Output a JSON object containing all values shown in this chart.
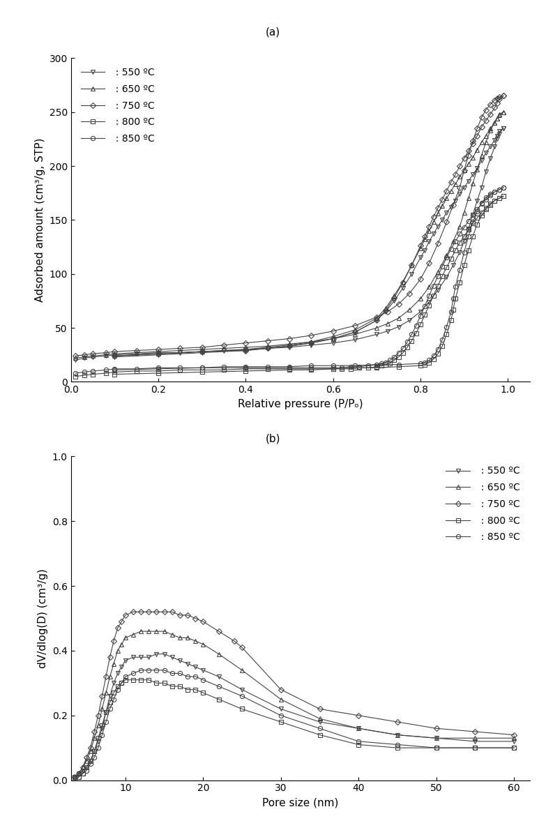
{
  "fig_width": 7.83,
  "fig_height": 11.9,
  "label_a": "(a)",
  "label_b": "(b)",
  "plot_a": {
    "xlabel": "Relative pressure (P/Pₒ)",
    "ylabel": "Adsorbed amount (cm³/g, STP)",
    "xlim": [
      0.0,
      1.05
    ],
    "ylim": [
      0,
      300
    ],
    "yticks": [
      0,
      50,
      100,
      150,
      200,
      250,
      300
    ],
    "xticks": [
      0.0,
      0.2,
      0.4,
      0.6,
      0.8,
      1.0
    ],
    "series": {
      "550": {
        "adsorption_x": [
          0.01,
          0.03,
          0.05,
          0.08,
          0.1,
          0.15,
          0.2,
          0.25,
          0.3,
          0.35,
          0.4,
          0.45,
          0.5,
          0.55,
          0.6,
          0.65,
          0.7,
          0.725,
          0.75,
          0.775,
          0.8,
          0.82,
          0.84,
          0.86,
          0.875,
          0.89,
          0.9,
          0.91,
          0.92,
          0.93,
          0.94,
          0.95,
          0.96,
          0.97,
          0.975,
          0.98,
          0.99
        ],
        "adsorption_y": [
          20,
          22,
          23,
          24,
          25,
          26,
          27,
          27,
          28,
          29,
          30,
          31,
          32,
          34,
          36,
          39,
          44,
          47,
          51,
          57,
          65,
          74,
          85,
          97,
          108,
          120,
          130,
          142,
          155,
          168,
          180,
          195,
          207,
          218,
          225,
          230,
          235
        ],
        "desorption_x": [
          0.99,
          0.98,
          0.975,
          0.97,
          0.96,
          0.95,
          0.94,
          0.93,
          0.92,
          0.91,
          0.9,
          0.89,
          0.88,
          0.87,
          0.86,
          0.85,
          0.84,
          0.83,
          0.82,
          0.81,
          0.8,
          0.78,
          0.76,
          0.74,
          0.72,
          0.7,
          0.65,
          0.6,
          0.55,
          0.5,
          0.45,
          0.4,
          0.3,
          0.2,
          0.1
        ],
        "desorption_y": [
          235,
          232,
          228,
          224,
          218,
          212,
          205,
          198,
          192,
          186,
          180,
          174,
          168,
          162,
          157,
          150,
          144,
          137,
          130,
          122,
          115,
          100,
          87,
          75,
          65,
          57,
          46,
          40,
          36,
          33,
          31,
          29,
          27,
          25,
          23
        ],
        "marker": "v",
        "color": "#444444"
      },
      "650": {
        "adsorption_x": [
          0.01,
          0.03,
          0.05,
          0.08,
          0.1,
          0.15,
          0.2,
          0.25,
          0.3,
          0.35,
          0.4,
          0.45,
          0.5,
          0.55,
          0.6,
          0.65,
          0.7,
          0.725,
          0.75,
          0.775,
          0.8,
          0.82,
          0.84,
          0.86,
          0.875,
          0.89,
          0.9,
          0.91,
          0.92,
          0.93,
          0.94,
          0.95,
          0.96,
          0.97,
          0.975,
          0.98,
          0.99
        ],
        "adsorption_y": [
          22,
          23,
          24,
          25,
          26,
          27,
          28,
          29,
          30,
          31,
          32,
          33,
          35,
          37,
          40,
          44,
          50,
          54,
          59,
          67,
          77,
          88,
          102,
          117,
          130,
          144,
          157,
          170,
          184,
          197,
          210,
          222,
          233,
          240,
          244,
          248,
          250
        ],
        "desorption_x": [
          0.99,
          0.98,
          0.975,
          0.97,
          0.96,
          0.95,
          0.94,
          0.93,
          0.92,
          0.91,
          0.9,
          0.89,
          0.88,
          0.87,
          0.86,
          0.85,
          0.84,
          0.83,
          0.82,
          0.81,
          0.8,
          0.78,
          0.76,
          0.74,
          0.72,
          0.7,
          0.65,
          0.6,
          0.55,
          0.5,
          0.45,
          0.4,
          0.3,
          0.2,
          0.1
        ],
        "desorption_y": [
          250,
          247,
          244,
          240,
          235,
          228,
          222,
          215,
          208,
          202,
          196,
          190,
          183,
          177,
          170,
          163,
          156,
          148,
          140,
          132,
          124,
          108,
          93,
          80,
          68,
          59,
          48,
          42,
          37,
          34,
          32,
          30,
          28,
          26,
          24
        ],
        "marker": "^",
        "color": "#444444"
      },
      "750": {
        "adsorption_x": [
          0.01,
          0.03,
          0.05,
          0.08,
          0.1,
          0.15,
          0.2,
          0.25,
          0.3,
          0.35,
          0.4,
          0.45,
          0.5,
          0.55,
          0.6,
          0.65,
          0.7,
          0.725,
          0.75,
          0.775,
          0.8,
          0.82,
          0.84,
          0.86,
          0.875,
          0.89,
          0.9,
          0.91,
          0.92,
          0.93,
          0.94,
          0.95,
          0.96,
          0.97,
          0.975,
          0.98,
          0.99
        ],
        "adsorption_y": [
          24,
          25,
          26,
          27,
          28,
          29,
          30,
          31,
          32,
          34,
          36,
          38,
          40,
          43,
          47,
          52,
          60,
          65,
          72,
          82,
          95,
          110,
          128,
          148,
          164,
          180,
          196,
          210,
          223,
          235,
          245,
          252,
          257,
          261,
          263,
          264,
          265
        ],
        "desorption_x": [
          0.99,
          0.98,
          0.975,
          0.97,
          0.96,
          0.95,
          0.94,
          0.93,
          0.92,
          0.91,
          0.9,
          0.89,
          0.88,
          0.87,
          0.86,
          0.85,
          0.84,
          0.83,
          0.82,
          0.81,
          0.8,
          0.78,
          0.76,
          0.74,
          0.72,
          0.7,
          0.65,
          0.6,
          0.55,
          0.5,
          0.45,
          0.4,
          0.3,
          0.2,
          0.1
        ],
        "desorption_y": [
          265,
          262,
          258,
          254,
          248,
          242,
          236,
          228,
          221,
          214,
          207,
          200,
          192,
          185,
          177,
          169,
          161,
          153,
          144,
          135,
          126,
          108,
          92,
          78,
          66,
          57,
          46,
          40,
          36,
          33,
          31,
          29,
          28,
          26,
          24
        ],
        "marker": "D",
        "color": "#444444"
      },
      "800": {
        "adsorption_x": [
          0.01,
          0.03,
          0.05,
          0.08,
          0.1,
          0.15,
          0.2,
          0.25,
          0.3,
          0.35,
          0.4,
          0.45,
          0.5,
          0.55,
          0.6,
          0.65,
          0.7,
          0.75,
          0.8,
          0.81,
          0.82,
          0.83,
          0.84,
          0.85,
          0.86,
          0.87,
          0.875,
          0.88,
          0.89,
          0.9,
          0.91,
          0.92,
          0.93,
          0.94,
          0.95,
          0.96,
          0.97,
          0.98,
          0.99
        ],
        "adsorption_y": [
          5,
          6,
          7,
          8,
          9,
          10,
          10,
          11,
          11,
          11,
          12,
          12,
          12,
          12,
          12,
          13,
          13,
          14,
          15,
          16,
          18,
          21,
          26,
          33,
          44,
          57,
          67,
          77,
          92,
          108,
          122,
          135,
          146,
          154,
          160,
          164,
          168,
          170,
          172
        ],
        "desorption_x": [
          0.99,
          0.98,
          0.97,
          0.96,
          0.95,
          0.94,
          0.93,
          0.92,
          0.91,
          0.9,
          0.89,
          0.88,
          0.87,
          0.86,
          0.85,
          0.84,
          0.83,
          0.82,
          0.81,
          0.8,
          0.79,
          0.78,
          0.77,
          0.76,
          0.75,
          0.74,
          0.73,
          0.72,
          0.71,
          0.7,
          0.68,
          0.66,
          0.64,
          0.62,
          0.6,
          0.55,
          0.5,
          0.4,
          0.3,
          0.2,
          0.1
        ],
        "desorption_y": [
          172,
          170,
          168,
          165,
          161,
          157,
          152,
          147,
          141,
          135,
          129,
          122,
          114,
          106,
          98,
          89,
          80,
          71,
          62,
          53,
          45,
          38,
          32,
          27,
          23,
          20,
          17,
          16,
          15,
          14,
          13,
          13,
          12,
          12,
          12,
          11,
          11,
          10,
          9,
          8,
          7
        ],
        "marker": "s",
        "color": "#444444"
      },
      "850": {
        "adsorption_x": [
          0.01,
          0.03,
          0.05,
          0.08,
          0.1,
          0.15,
          0.2,
          0.25,
          0.3,
          0.35,
          0.4,
          0.45,
          0.5,
          0.55,
          0.6,
          0.65,
          0.7,
          0.75,
          0.8,
          0.81,
          0.82,
          0.83,
          0.84,
          0.85,
          0.86,
          0.87,
          0.875,
          0.88,
          0.89,
          0.9,
          0.91,
          0.92,
          0.93,
          0.94,
          0.95,
          0.96,
          0.97,
          0.98,
          0.99
        ],
        "adsorption_y": [
          8,
          9,
          10,
          11,
          12,
          12,
          13,
          13,
          13,
          14,
          14,
          14,
          14,
          15,
          15,
          15,
          16,
          16,
          17,
          18,
          20,
          24,
          30,
          39,
          51,
          65,
          77,
          88,
          104,
          120,
          135,
          148,
          158,
          166,
          171,
          174,
          176,
          178,
          180
        ],
        "desorption_x": [
          0.99,
          0.98,
          0.97,
          0.96,
          0.95,
          0.94,
          0.93,
          0.92,
          0.91,
          0.9,
          0.89,
          0.88,
          0.87,
          0.86,
          0.85,
          0.84,
          0.83,
          0.82,
          0.81,
          0.8,
          0.79,
          0.78,
          0.77,
          0.76,
          0.75,
          0.74,
          0.73,
          0.72,
          0.71,
          0.7,
          0.68,
          0.66,
          0.64,
          0.62,
          0.6,
          0.55,
          0.5,
          0.4,
          0.3,
          0.2,
          0.1
        ],
        "desorption_y": [
          180,
          178,
          176,
          173,
          169,
          165,
          160,
          155,
          149,
          143,
          137,
          130,
          123,
          115,
          107,
          98,
          89,
          80,
          70,
          61,
          52,
          44,
          37,
          31,
          27,
          23,
          20,
          18,
          17,
          16,
          15,
          14,
          14,
          13,
          13,
          13,
          13,
          13,
          13,
          12,
          11
        ],
        "marker": "o",
        "color": "#444444"
      }
    }
  },
  "plot_b": {
    "xlabel": "Pore size (nm)",
    "ylabel": "dV/dlog(D) (cm³/g)",
    "xlim": [
      3,
      62
    ],
    "ylim": [
      0.0,
      1.0
    ],
    "yticks": [
      0.0,
      0.2,
      0.4,
      0.6,
      0.8,
      1.0
    ],
    "xticks": [
      10,
      20,
      30,
      40,
      50,
      60
    ],
    "series": {
      "550": {
        "x": [
          3.5,
          4,
          4.5,
          5,
          5.5,
          6,
          6.5,
          7,
          7.5,
          8,
          8.5,
          9,
          9.5,
          10,
          11,
          12,
          13,
          14,
          15,
          16,
          17,
          18,
          19,
          20,
          22,
          25,
          30,
          35,
          40,
          45,
          50,
          55,
          60
        ],
        "y": [
          0.01,
          0.02,
          0.03,
          0.04,
          0.06,
          0.09,
          0.12,
          0.16,
          0.21,
          0.26,
          0.3,
          0.33,
          0.35,
          0.37,
          0.38,
          0.38,
          0.38,
          0.39,
          0.39,
          0.38,
          0.37,
          0.36,
          0.35,
          0.34,
          0.32,
          0.28,
          0.22,
          0.18,
          0.16,
          0.14,
          0.13,
          0.12,
          0.12
        ],
        "marker": "v",
        "color": "#444444"
      },
      "650": {
        "x": [
          3.5,
          4,
          4.5,
          5,
          5.5,
          6,
          6.5,
          7,
          7.5,
          8,
          8.5,
          9,
          9.5,
          10,
          11,
          12,
          13,
          14,
          15,
          16,
          17,
          18,
          19,
          20,
          22,
          25,
          30,
          35,
          40,
          45,
          50,
          55,
          60
        ],
        "y": [
          0.01,
          0.02,
          0.04,
          0.06,
          0.09,
          0.13,
          0.17,
          0.22,
          0.27,
          0.32,
          0.36,
          0.4,
          0.42,
          0.44,
          0.45,
          0.46,
          0.46,
          0.46,
          0.46,
          0.45,
          0.44,
          0.44,
          0.43,
          0.42,
          0.39,
          0.34,
          0.25,
          0.19,
          0.16,
          0.14,
          0.13,
          0.13,
          0.13
        ],
        "marker": "^",
        "color": "#444444"
      },
      "750": {
        "x": [
          3.5,
          4,
          4.5,
          5,
          5.5,
          6,
          6.5,
          7,
          7.5,
          8,
          8.5,
          9,
          9.5,
          10,
          11,
          12,
          13,
          14,
          15,
          16,
          17,
          18,
          19,
          20,
          22,
          24,
          25,
          30,
          35,
          40,
          45,
          50,
          55,
          60
        ],
        "y": [
          0.01,
          0.02,
          0.04,
          0.07,
          0.1,
          0.15,
          0.2,
          0.26,
          0.32,
          0.38,
          0.43,
          0.47,
          0.49,
          0.51,
          0.52,
          0.52,
          0.52,
          0.52,
          0.52,
          0.52,
          0.51,
          0.51,
          0.5,
          0.49,
          0.46,
          0.43,
          0.41,
          0.28,
          0.22,
          0.2,
          0.18,
          0.16,
          0.15,
          0.14
        ],
        "marker": "D",
        "color": "#444444"
      },
      "800": {
        "x": [
          3.5,
          4,
          4.5,
          5,
          5.5,
          6,
          6.5,
          7,
          7.5,
          8,
          8.5,
          9,
          9.5,
          10,
          11,
          12,
          13,
          14,
          15,
          16,
          17,
          18,
          19,
          20,
          22,
          25,
          30,
          35,
          40,
          45,
          50,
          55,
          60
        ],
        "y": [
          0.01,
          0.01,
          0.02,
          0.04,
          0.06,
          0.09,
          0.13,
          0.17,
          0.21,
          0.24,
          0.27,
          0.29,
          0.3,
          0.31,
          0.31,
          0.31,
          0.31,
          0.3,
          0.3,
          0.29,
          0.29,
          0.28,
          0.28,
          0.27,
          0.25,
          0.22,
          0.18,
          0.14,
          0.11,
          0.1,
          0.1,
          0.1,
          0.1
        ],
        "marker": "s",
        "color": "#444444"
      },
      "850": {
        "x": [
          3.5,
          4,
          4.5,
          5,
          5.5,
          6,
          6.5,
          7,
          7.5,
          8,
          8.5,
          9,
          9.5,
          10,
          11,
          12,
          13,
          14,
          15,
          16,
          17,
          18,
          19,
          20,
          22,
          25,
          30,
          35,
          40,
          45,
          50,
          55,
          60
        ],
        "y": [
          0.0,
          0.01,
          0.02,
          0.03,
          0.05,
          0.07,
          0.1,
          0.14,
          0.18,
          0.22,
          0.25,
          0.28,
          0.3,
          0.32,
          0.33,
          0.34,
          0.34,
          0.34,
          0.34,
          0.33,
          0.33,
          0.32,
          0.32,
          0.31,
          0.29,
          0.26,
          0.2,
          0.16,
          0.12,
          0.11,
          0.1,
          0.1,
          0.1
        ],
        "marker": "o",
        "color": "#444444"
      }
    }
  }
}
